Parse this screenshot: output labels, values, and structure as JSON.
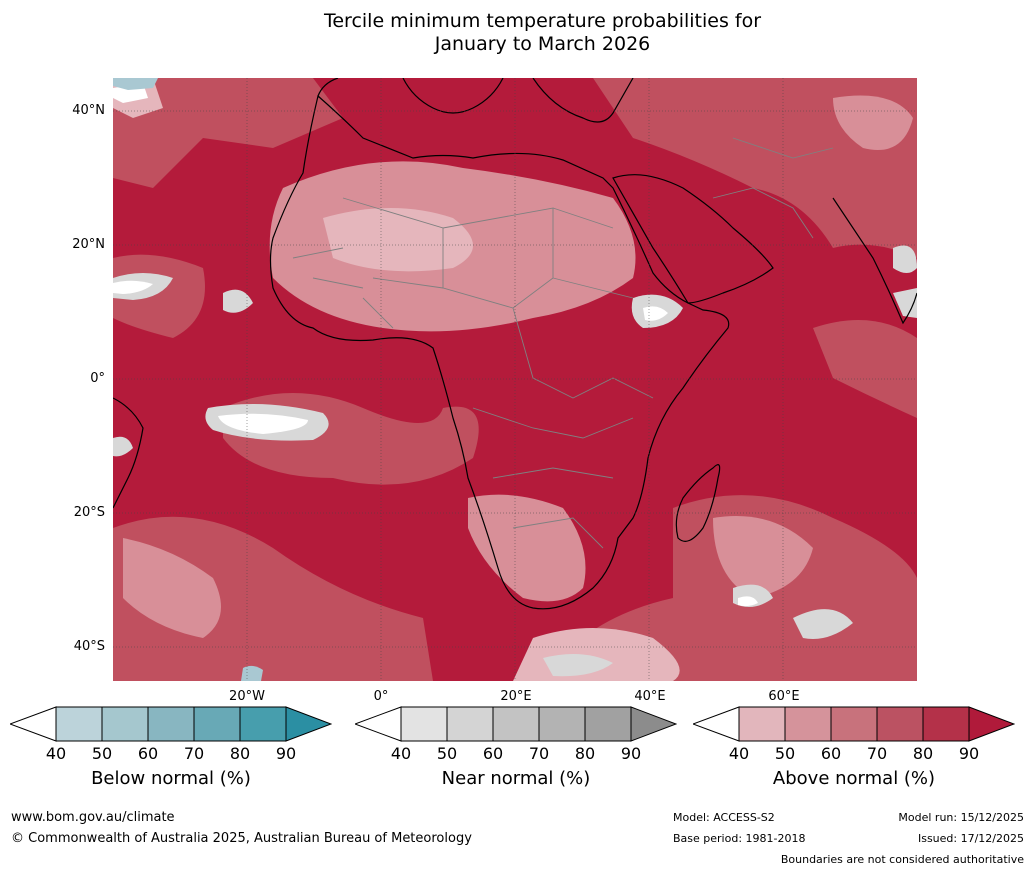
{
  "title_line1": "Tercile minimum temperature probabilities for",
  "title_line2": "January to March 2026",
  "map": {
    "lat_labels": [
      "40°N",
      "20°N",
      "0°",
      "20°S",
      "40°S"
    ],
    "lon_labels": [
      "20°W",
      "0°",
      "20°E",
      "40°E",
      "60°E"
    ],
    "colors": {
      "ocean_dark": "#b41b3b",
      "mid": "#c0505f",
      "light": "#d88f98",
      "pale": "#e5b6bc",
      "near": "#d8d8d8",
      "below": "#a9c8d2",
      "border": "#000000",
      "country": "#808080",
      "grid": "#444444"
    }
  },
  "colorbars": {
    "below": {
      "ticks": [
        "40",
        "50",
        "60",
        "70",
        "80",
        "90"
      ],
      "label": "Below normal (%)",
      "colors": [
        "#bcd3da",
        "#a5c7ce",
        "#88b6c1",
        "#68a9b6",
        "#479ead",
        "#2b8fa3"
      ]
    },
    "near": {
      "ticks": [
        "40",
        "50",
        "60",
        "70",
        "80",
        "90"
      ],
      "label": "Near normal (%)",
      "colors": [
        "#e3e3e3",
        "#d4d4d4",
        "#c3c3c3",
        "#b3b3b3",
        "#a1a1a1",
        "#8c8c8c"
      ]
    },
    "above": {
      "ticks": [
        "40",
        "50",
        "60",
        "70",
        "80",
        "90"
      ],
      "label": "Above normal (%)",
      "colors": [
        "#e2b6bc",
        "#d5939b",
        "#c8727c",
        "#bb5262",
        "#b43149",
        "#b01a3a"
      ]
    }
  },
  "footer": {
    "url": "www.bom.gov.au/climate",
    "copyright": "© Commonwealth of Australia 2025, Australian Bureau of Meteorology",
    "model": "Model: ACCESS-S2",
    "base_period": "Base period: 1981-2018",
    "model_run": "Model run: 15/12/2025",
    "issued": "Issued: 17/12/2025",
    "boundaries": "Boundaries are not considered authoritative"
  }
}
